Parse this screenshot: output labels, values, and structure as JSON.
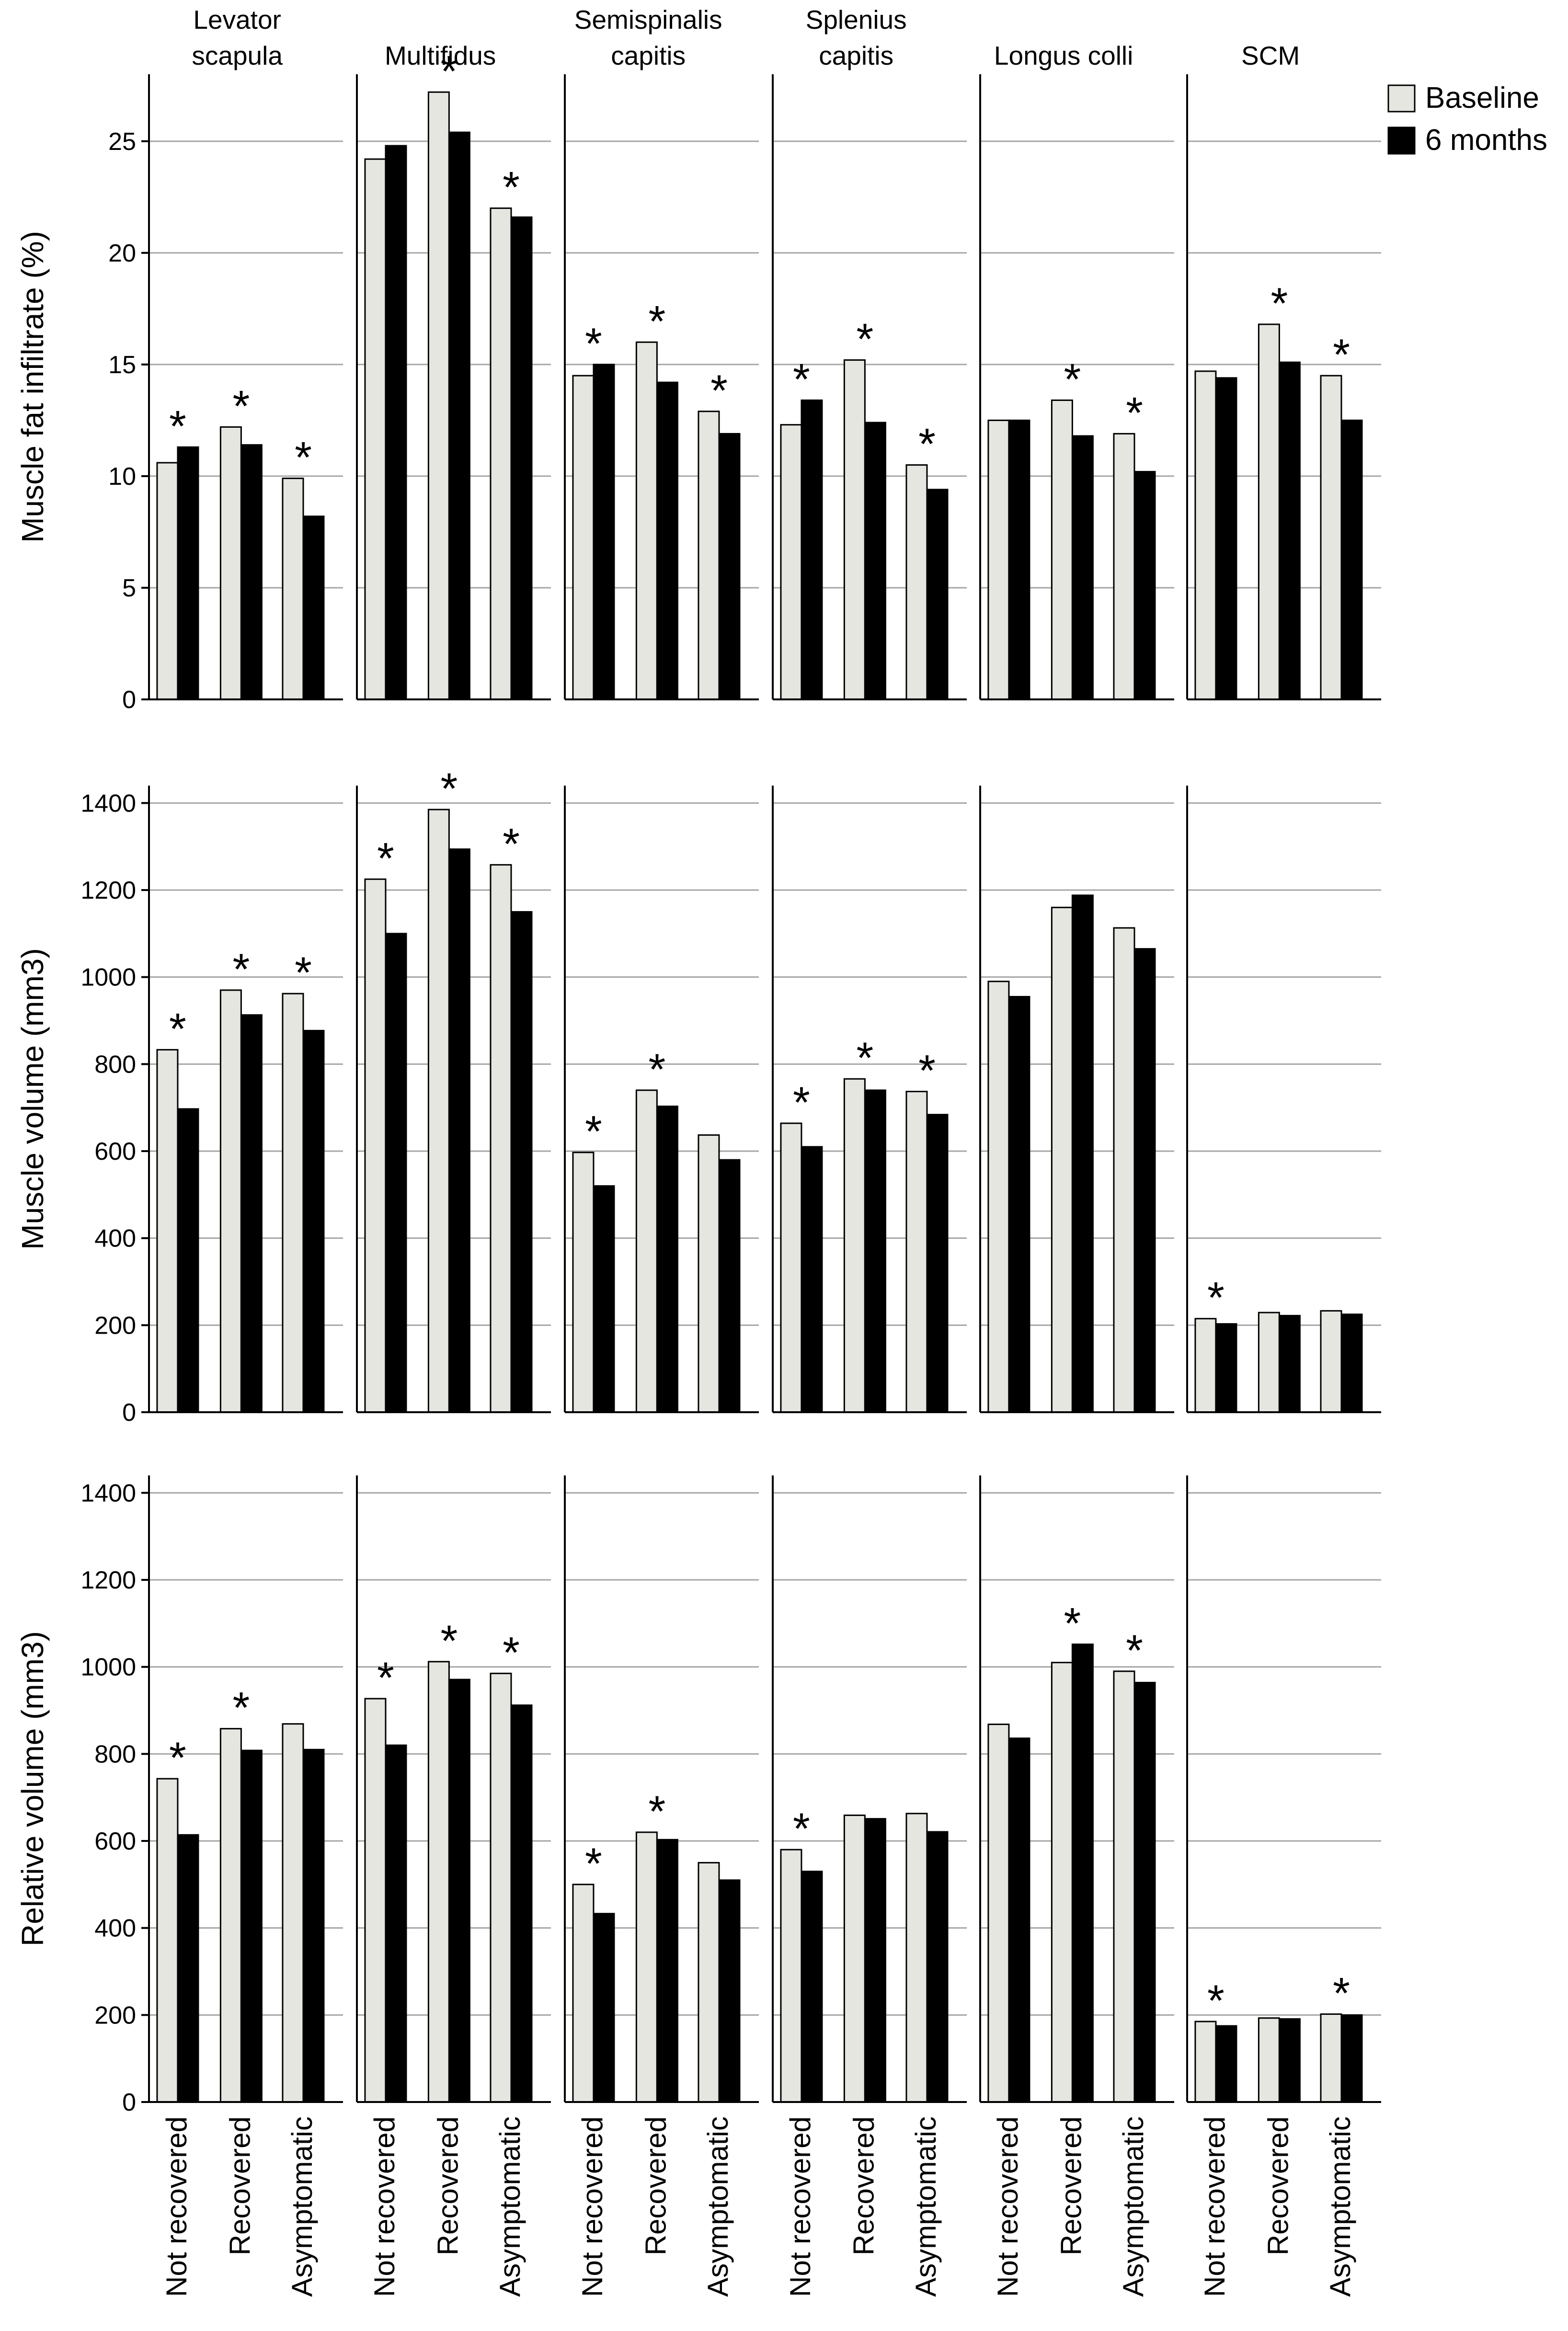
{
  "legend": {
    "items": [
      {
        "label": "Baseline",
        "color": "#e6e6e1"
      },
      {
        "label": "6 months",
        "color": "#000000"
      }
    ],
    "placement": "top-right"
  },
  "colors": {
    "baseline": "#e6e6e1",
    "six_months": "#000000",
    "gridline": "#a6a6a6",
    "axis": "#000000"
  },
  "chart_data": {
    "type": "bar",
    "panels": [
      "Levator scapula",
      "Multifidus",
      "Semispinalis capitis",
      "Splenius capitis",
      "Longus colli",
      "SCM"
    ],
    "categories": [
      "Not recovered",
      "Recovered",
      "Asymptomatic"
    ],
    "series_names": [
      "Baseline",
      "6 months"
    ],
    "significance_marker": "*",
    "rows": [
      {
        "ylabel": "Muscle fat infiltrate (%)",
        "ylim": [
          0,
          28
        ],
        "yticks": [
          0,
          5,
          10,
          15,
          20,
          25
        ],
        "grid": true,
        "charts": [
          {
            "panel": "Levator scapula",
            "baseline": [
              10.6,
              12.2,
              9.9
            ],
            "six_months": [
              11.3,
              11.4,
              8.2
            ],
            "significant": [
              true,
              true,
              true
            ]
          },
          {
            "panel": "Multifidus",
            "baseline": [
              24.2,
              27.2,
              22.0
            ],
            "six_months": [
              24.8,
              25.4,
              21.6
            ],
            "significant": [
              false,
              true,
              true
            ]
          },
          {
            "panel": "Semispinalis capitis",
            "baseline": [
              14.5,
              16.0,
              12.9
            ],
            "six_months": [
              15.0,
              14.2,
              11.9
            ],
            "significant": [
              true,
              true,
              true
            ]
          },
          {
            "panel": "Splenius capitis",
            "baseline": [
              12.3,
              15.2,
              10.5
            ],
            "six_months": [
              13.4,
              12.4,
              9.4
            ],
            "significant": [
              true,
              true,
              true
            ]
          },
          {
            "panel": "Longus colli",
            "baseline": [
              12.5,
              13.4,
              11.9
            ],
            "six_months": [
              12.5,
              11.8,
              10.2
            ],
            "significant": [
              false,
              true,
              true
            ]
          },
          {
            "panel": "SCM",
            "baseline": [
              14.7,
              16.8,
              14.5
            ],
            "six_months": [
              14.4,
              15.1,
              12.5
            ],
            "significant": [
              false,
              true,
              true
            ]
          }
        ]
      },
      {
        "ylabel": "Muscle volume (mm3)",
        "ylim": [
          0,
          1440
        ],
        "yticks": [
          0,
          200,
          400,
          600,
          800,
          1000,
          1200,
          1400
        ],
        "grid": true,
        "charts": [
          {
            "panel": "Levator scapula",
            "baseline": [
              833,
              970,
              962
            ],
            "six_months": [
              697,
              913,
              877
            ],
            "significant": [
              true,
              true,
              true
            ]
          },
          {
            "panel": "Multifidus",
            "baseline": [
              1225,
              1385,
              1258
            ],
            "six_months": [
              1100,
              1294,
              1150
            ],
            "significant": [
              true,
              true,
              true
            ]
          },
          {
            "panel": "Semispinalis capitis",
            "baseline": [
              597,
              740,
              637
            ],
            "six_months": [
              520,
              703,
              580
            ],
            "significant": [
              true,
              true,
              false
            ]
          },
          {
            "panel": "Splenius capitis",
            "baseline": [
              664,
              766,
              737
            ],
            "six_months": [
              610,
              740,
              684
            ],
            "significant": [
              true,
              true,
              true
            ]
          },
          {
            "panel": "Longus colli",
            "baseline": [
              990,
              1160,
              1113
            ],
            "six_months": [
              955,
              1188,
              1065
            ],
            "significant": [
              false,
              false,
              false
            ]
          },
          {
            "panel": "SCM",
            "baseline": [
              215,
              229,
              233
            ],
            "six_months": [
              203,
              222,
              225
            ],
            "significant": [
              true,
              false,
              false
            ]
          }
        ]
      },
      {
        "ylabel": "Relative volume (mm3)",
        "ylim": [
          0,
          1440
        ],
        "yticks": [
          0,
          200,
          400,
          600,
          800,
          1000,
          1200,
          1400
        ],
        "grid": true,
        "charts": [
          {
            "panel": "Levator scapula",
            "baseline": [
              743,
              858,
              869
            ],
            "six_months": [
              614,
              808,
              810
            ],
            "significant": [
              true,
              true,
              false
            ]
          },
          {
            "panel": "Multifidus",
            "baseline": [
              927,
              1012,
              985
            ],
            "six_months": [
              820,
              971,
              912
            ],
            "significant": [
              true,
              true,
              true
            ]
          },
          {
            "panel": "Semispinalis capitis",
            "baseline": [
              500,
              620,
              550
            ],
            "six_months": [
              433,
              603,
              510
            ],
            "significant": [
              true,
              true,
              false
            ]
          },
          {
            "panel": "Splenius capitis",
            "baseline": [
              580,
              659,
              663
            ],
            "six_months": [
              530,
              651,
              621
            ],
            "significant": [
              true,
              false,
              false
            ]
          },
          {
            "panel": "Longus colli",
            "baseline": [
              868,
              1010,
              990
            ],
            "six_months": [
              836,
              1052,
              964
            ],
            "significant": [
              false,
              true,
              true
            ]
          },
          {
            "panel": "SCM",
            "baseline": [
              185,
              193,
              202
            ],
            "six_months": [
              175,
              191,
              200
            ],
            "significant": [
              true,
              false,
              true
            ]
          }
        ]
      }
    ]
  }
}
